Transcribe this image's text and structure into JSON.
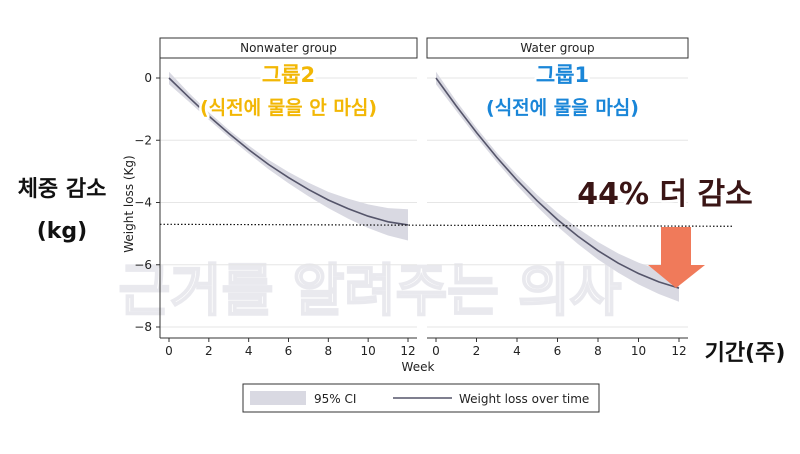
{
  "chart_data": {
    "type": "line",
    "xlabel": "Week",
    "ylabel": "Weight loss (Kg)",
    "xlim": [
      0,
      12
    ],
    "ylim": [
      -8,
      0
    ],
    "xticks": [
      "0",
      "2",
      "4",
      "6",
      "8",
      "10",
      "12"
    ],
    "yticks": [
      "0",
      "−2",
      "−4",
      "−6",
      "−8"
    ],
    "yticks_values": [
      0,
      -2,
      -4,
      -6,
      -8
    ],
    "xticks_values": [
      0,
      2,
      4,
      6,
      8,
      10,
      12
    ],
    "reference_line": {
      "y": -4.7,
      "style": "dotted"
    },
    "panels": [
      {
        "strip_label": "Nonwater group",
        "annotation_line1": "그룹2",
        "annotation_line2": "(식전에 물을 안 마심)",
        "annotation_color": "#f2b705",
        "x": [
          0,
          1,
          2,
          3,
          4,
          5,
          6,
          7,
          8,
          9,
          10,
          11,
          12
        ],
        "y": [
          0,
          -0.62,
          -1.22,
          -1.78,
          -2.3,
          -2.78,
          -3.2,
          -3.58,
          -3.92,
          -4.2,
          -4.44,
          -4.62,
          -4.72
        ],
        "ci_lower": [
          -0.2,
          -0.76,
          -1.34,
          -1.9,
          -2.43,
          -2.93,
          -3.38,
          -3.8,
          -4.18,
          -4.52,
          -4.82,
          -5.06,
          -5.22
        ],
        "ci_upper": [
          0.2,
          -0.48,
          -1.1,
          -1.66,
          -2.17,
          -2.63,
          -3.02,
          -3.36,
          -3.66,
          -3.88,
          -4.06,
          -4.18,
          -4.22
        ]
      },
      {
        "strip_label": "Water group",
        "annotation_line1": "그룹1",
        "annotation_line2": "(식전에 물을 마심)",
        "annotation_color": "#1a86d8",
        "x": [
          0,
          1,
          2,
          3,
          4,
          5,
          6,
          7,
          8,
          9,
          10,
          11,
          12
        ],
        "y": [
          0,
          -0.9,
          -1.75,
          -2.55,
          -3.28,
          -3.95,
          -4.55,
          -5.08,
          -5.55,
          -5.95,
          -6.28,
          -6.55,
          -6.75
        ],
        "ci_lower": [
          -0.2,
          -1.06,
          -1.9,
          -2.7,
          -3.45,
          -4.14,
          -4.77,
          -5.33,
          -5.83,
          -6.26,
          -6.63,
          -6.94,
          -7.19
        ],
        "ci_upper": [
          0.2,
          -0.74,
          -1.6,
          -2.4,
          -3.11,
          -3.76,
          -4.33,
          -4.83,
          -5.27,
          -5.64,
          -5.93,
          -6.16,
          -6.31
        ]
      }
    ],
    "legend": {
      "placement": "bottom",
      "ci_label": "95% CI",
      "line_label": "Weight loss over time"
    }
  },
  "overlay": {
    "y_label_line1": "체중 감소",
    "y_label_line2": "(kg)",
    "x_label": "기간(주)",
    "callout": "44% 더 감소",
    "watermark": "근거를 알려주는 의사",
    "arrow_color": "#f07a5a"
  },
  "colors": {
    "ci_band": "#d9d9e2",
    "line": "#55556a",
    "axis": "#333333",
    "strip_fill": "#ffffff",
    "strip_border": "#333333",
    "grid": "#e6e6e6"
  }
}
